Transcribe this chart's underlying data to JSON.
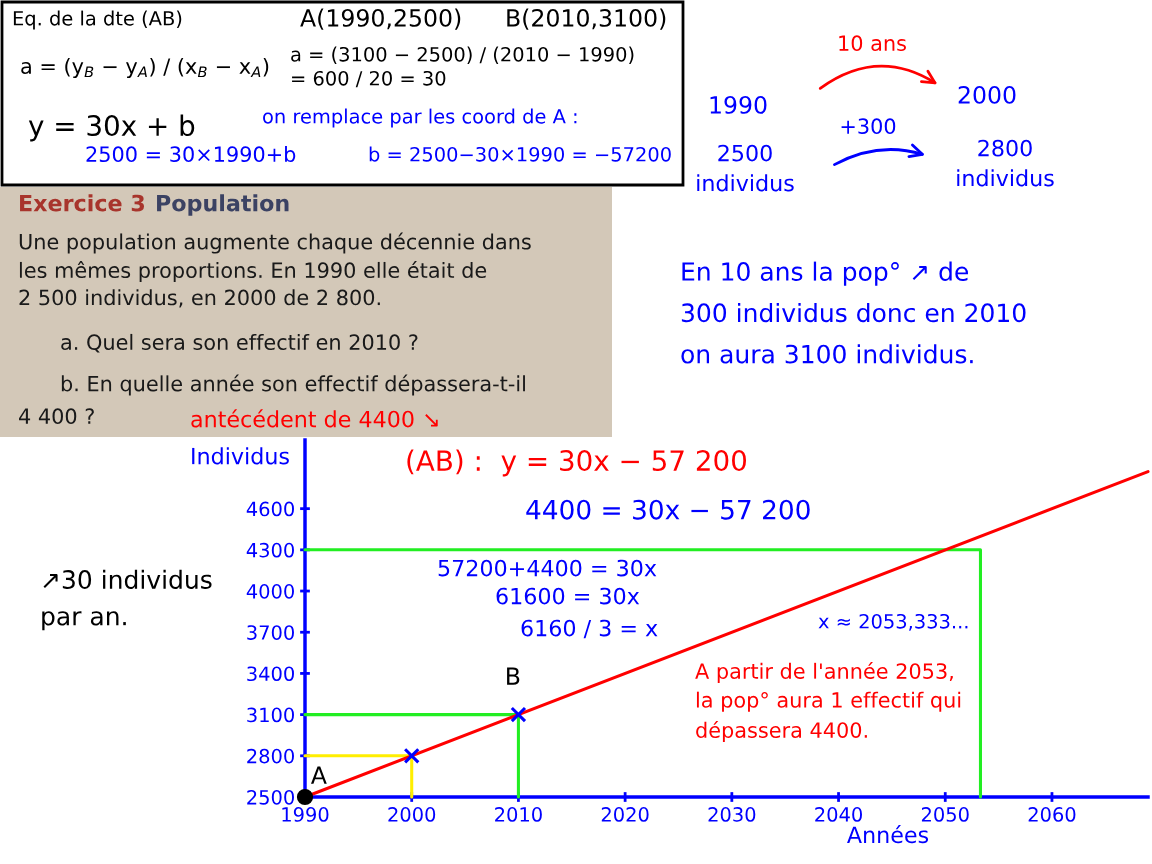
{
  "chart_data": {
    "type": "line",
    "xlabel": "Années",
    "ylabel": "Individus",
    "xlim": [
      1990,
      2069
    ],
    "xticks": [
      1990,
      2000,
      2010,
      2020,
      2030,
      2040,
      2050,
      2060
    ],
    "ylim": [
      2500,
      5100
    ],
    "yticks": [
      2500,
      2800,
      3100,
      3400,
      3700,
      4000,
      4300,
      4600
    ],
    "series": [
      {
        "x": [
          1990,
          2069
        ],
        "values": [
          2500,
          4870
        ],
        "color": "#ff0000",
        "marker": "none"
      },
      {
        "x": [
          1990,
          2053.3,
          2053.3
        ],
        "values": [
          4300,
          4300,
          2500
        ],
        "color": "#22ee22",
        "marker": "none"
      },
      {
        "x": [
          1990,
          2010,
          2010
        ],
        "values": [
          3100,
          3100,
          2500
        ],
        "color": "#22ee22",
        "marker": "none"
      },
      {
        "x": [
          1990,
          2000,
          2000
        ],
        "values": [
          2800,
          2800,
          2500
        ],
        "color": "#ffee00",
        "marker": "none"
      },
      {
        "type": "scatter",
        "x": [
          2000,
          2010
        ],
        "values": [
          2800,
          3100
        ],
        "color": "#0000ff",
        "marker": "cross"
      },
      {
        "type": "scatter",
        "x": [
          1990
        ],
        "values": [
          2500
        ],
        "color": "#000000",
        "marker": "circle"
      }
    ],
    "annotations": [
      "Eq. de la dte (AB)",
      "A(1990,2500)",
      "B(2010,3100)",
      "a = (y$_{B}$ − y$_{A}$) / (x$_{B}$ − x$_{A}$)",
      "a = (3100 − 2500) / (2010 − 1990)\n= 600 / 20 = 30",
      "y = 30x + b",
      "on remplace par les coord de A :",
      "2500 = 30×1990+b",
      "b = 2500−30×1990 = −57200",
      "10 ans",
      "1990",
      "2500\nindividus",
      "+300",
      "2000",
      "2800\nindividus",
      "En 10 ans la pop° ↗ de\n300 individus donc en 2010\non aura 3100 individus.",
      "Exercice 3",
      "Population",
      "Une population augmente chaque décennie dans\nles mêmes proportions. En 1990 elle était de\n2 500 individus, en 2000 de 2 800.",
      "a. Quel sera son effectif en 2010 ?",
      "b. En quelle année son effectif dépassera-t-il",
      "4 400 ?",
      "antécédent de 4400 ↘",
      "(AB) :  y = 30x − 57 200",
      "4400 = 30x − 57 200",
      "57200+4400 = 30x",
      "61600 = 30x",
      "6160 / 3 = x",
      "x ≈ 2053,333...",
      "A partir de l'année 2053,\nla pop° aura 1 effectif qui\ndépassera 4400.",
      "↗30 individus\npar an.",
      {
        "text": "A",
        "x": 1990,
        "y": 2500
      },
      {
        "text": "B",
        "x": 2010,
        "y": 3100
      }
    ]
  }
}
